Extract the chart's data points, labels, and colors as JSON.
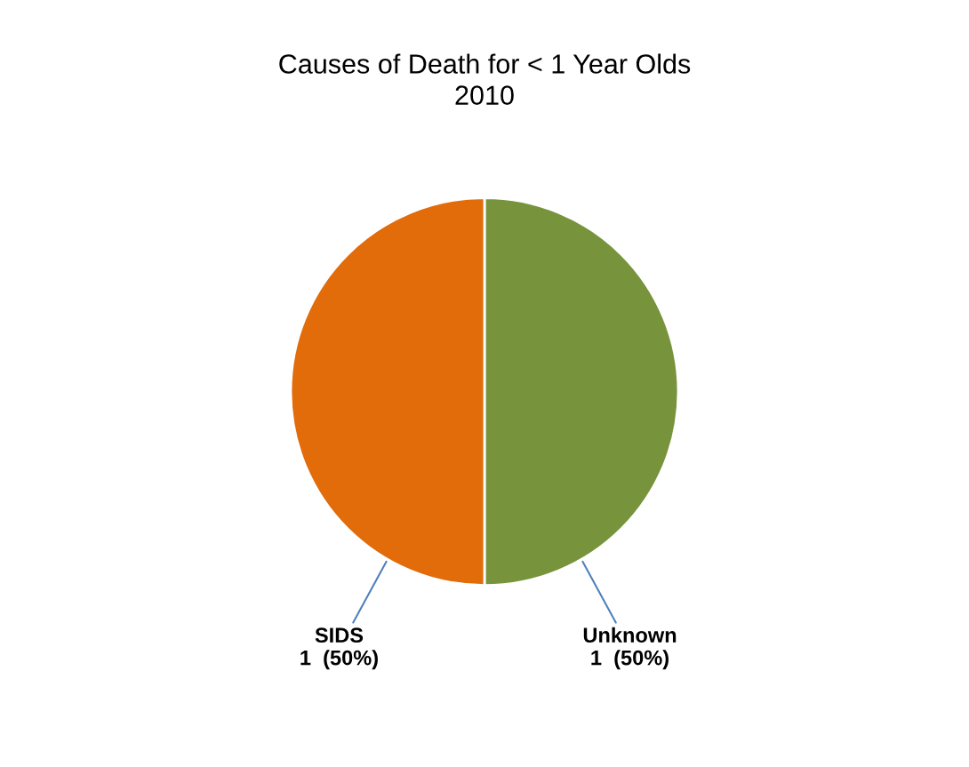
{
  "chart_data": {
    "type": "pie",
    "title": "Causes of Death for < 1 Year Olds\n2010",
    "categories": [
      "Unknown",
      "SIDS"
    ],
    "values": [
      1,
      1
    ],
    "value_labels": [
      "1  (50%)",
      "1  (50%)"
    ],
    "colors": [
      "#77933c",
      "#e26b0a"
    ]
  }
}
